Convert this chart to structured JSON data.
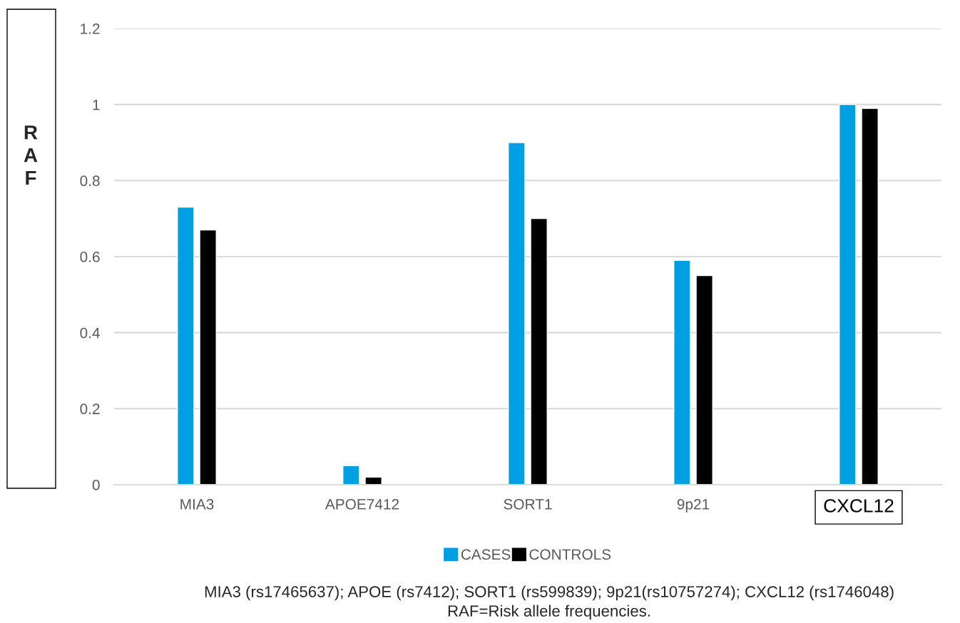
{
  "chart_data": {
    "type": "bar",
    "ylabel": "RAF",
    "categories": [
      "MIA3",
      "APOE7412",
      "SORT1",
      "9p21",
      "CXCL12"
    ],
    "series": [
      {
        "name": "CASES",
        "color": "#009fe3",
        "values": [
          0.73,
          0.05,
          0.9,
          0.59,
          1.0
        ]
      },
      {
        "name": "CONTROLS",
        "color": "#000000",
        "values": [
          0.67,
          0.02,
          0.7,
          0.55,
          0.99
        ]
      }
    ],
    "ylim": [
      0,
      1.2
    ],
    "yticks": [
      0,
      0.2,
      0.4,
      0.6,
      0.8,
      1,
      1.2
    ],
    "grid": "y",
    "legend": "bottom",
    "annotations": [
      "MIA3 (rs17465637); APOE (rs7412); SORT1 (rs599839); 9p21(rs10757274); CXCL12 (rs1746048)",
      "RAF=Risk allele frequencies."
    ]
  }
}
